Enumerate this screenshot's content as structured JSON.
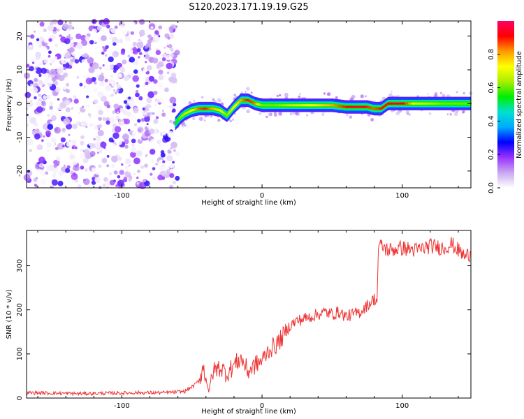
{
  "title": "S120.2023.171.19.19.G25",
  "chart_data": [
    {
      "type": "heatmap",
      "xlabel": "Height of straight line (km)",
      "ylabel": "Frequency (Hz)",
      "xlim": [
        -168,
        149
      ],
      "ylim": [
        -25,
        24.5
      ],
      "xticks": [
        -100,
        0,
        100
      ],
      "yticks": [
        -20,
        -10,
        0,
        10,
        20
      ],
      "colorbar": {
        "label": "Normalized spectral amplitude",
        "range": [
          0.0,
          1.0
        ],
        "ticks": [
          0.0,
          0.2,
          0.4,
          0.6,
          0.8
        ],
        "tick_labels": [
          "0.0",
          "0.2",
          "0.4",
          "0.6",
          "0.8"
        ],
        "colormap": [
          "#ffffff",
          "#c8a8f0",
          "#9933ff",
          "#0000ff",
          "#00aaff",
          "#00e0d0",
          "#00ee00",
          "#aaee00",
          "#ffff00",
          "#ff9900",
          "#ff0000",
          "#ff0066"
        ]
      },
      "ridge": {
        "x": [
          -62,
          -58,
          -55,
          -50,
          -45,
          -40,
          -35,
          -30,
          -25,
          -20,
          -15,
          -10,
          -5,
          0,
          10,
          20,
          30,
          40,
          50,
          60,
          70,
          75,
          80,
          85,
          90,
          95,
          100,
          110,
          120,
          130,
          140,
          149
        ],
        "freq": [
          -6,
          -4,
          -3,
          -2,
          -1.5,
          -1.5,
          -1.5,
          -2,
          -3.5,
          -1,
          1,
          1,
          0,
          -0.5,
          -0.5,
          -0.5,
          -0.5,
          -0.5,
          -0.5,
          -1,
          -1,
          -1,
          -1.5,
          -1.5,
          0,
          0,
          0,
          0,
          0,
          0,
          0,
          0
        ],
        "peak_amplitude": [
          0.5,
          0.6,
          0.65,
          0.7,
          0.85,
          0.9,
          0.8,
          0.75,
          0.6,
          0.7,
          0.8,
          0.9,
          0.85,
          0.6,
          0.6,
          0.65,
          0.7,
          0.75,
          0.8,
          0.9,
          0.95,
          0.9,
          0.85,
          0.9,
          0.9,
          0.95,
          0.95,
          0.7,
          0.65,
          0.6,
          0.6,
          0.6
        ]
      },
      "noise_region_x": [
        -168,
        -60
      ]
    },
    {
      "type": "line",
      "xlabel": "Height of straight line (km)",
      "ylabel": "SNR (10 * v/v)",
      "xlim": [
        -168,
        149
      ],
      "ylim": [
        0,
        380
      ],
      "xticks": [
        -100,
        0,
        100
      ],
      "yticks": [
        0,
        100,
        200,
        300
      ],
      "color": "#ee3333",
      "series": [
        {
          "x": [
            -168,
            -150,
            -130,
            -110,
            -90,
            -70,
            -55,
            -48,
            -45,
            -42,
            -40,
            -38,
            -35,
            -30,
            -25,
            -20,
            -15,
            -10,
            -5,
            0,
            5,
            10,
            15,
            20,
            25,
            30,
            35,
            40,
            45,
            50,
            55,
            60,
            65,
            70,
            75,
            80,
            82,
            83,
            85,
            90,
            100,
            110,
            120,
            130,
            135,
            140,
            145,
            149
          ],
          "y": [
            12,
            11,
            10,
            11,
            12,
            12,
            15,
            30,
            40,
            70,
            45,
            15,
            60,
            70,
            55,
            75,
            90,
            60,
            75,
            85,
            110,
            120,
            140,
            165,
            175,
            180,
            185,
            190,
            195,
            190,
            195,
            185,
            190,
            195,
            210,
            225,
            220,
            340,
            345,
            335,
            340,
            335,
            345,
            340,
            350,
            335,
            320,
            330
          ]
        }
      ]
    }
  ]
}
